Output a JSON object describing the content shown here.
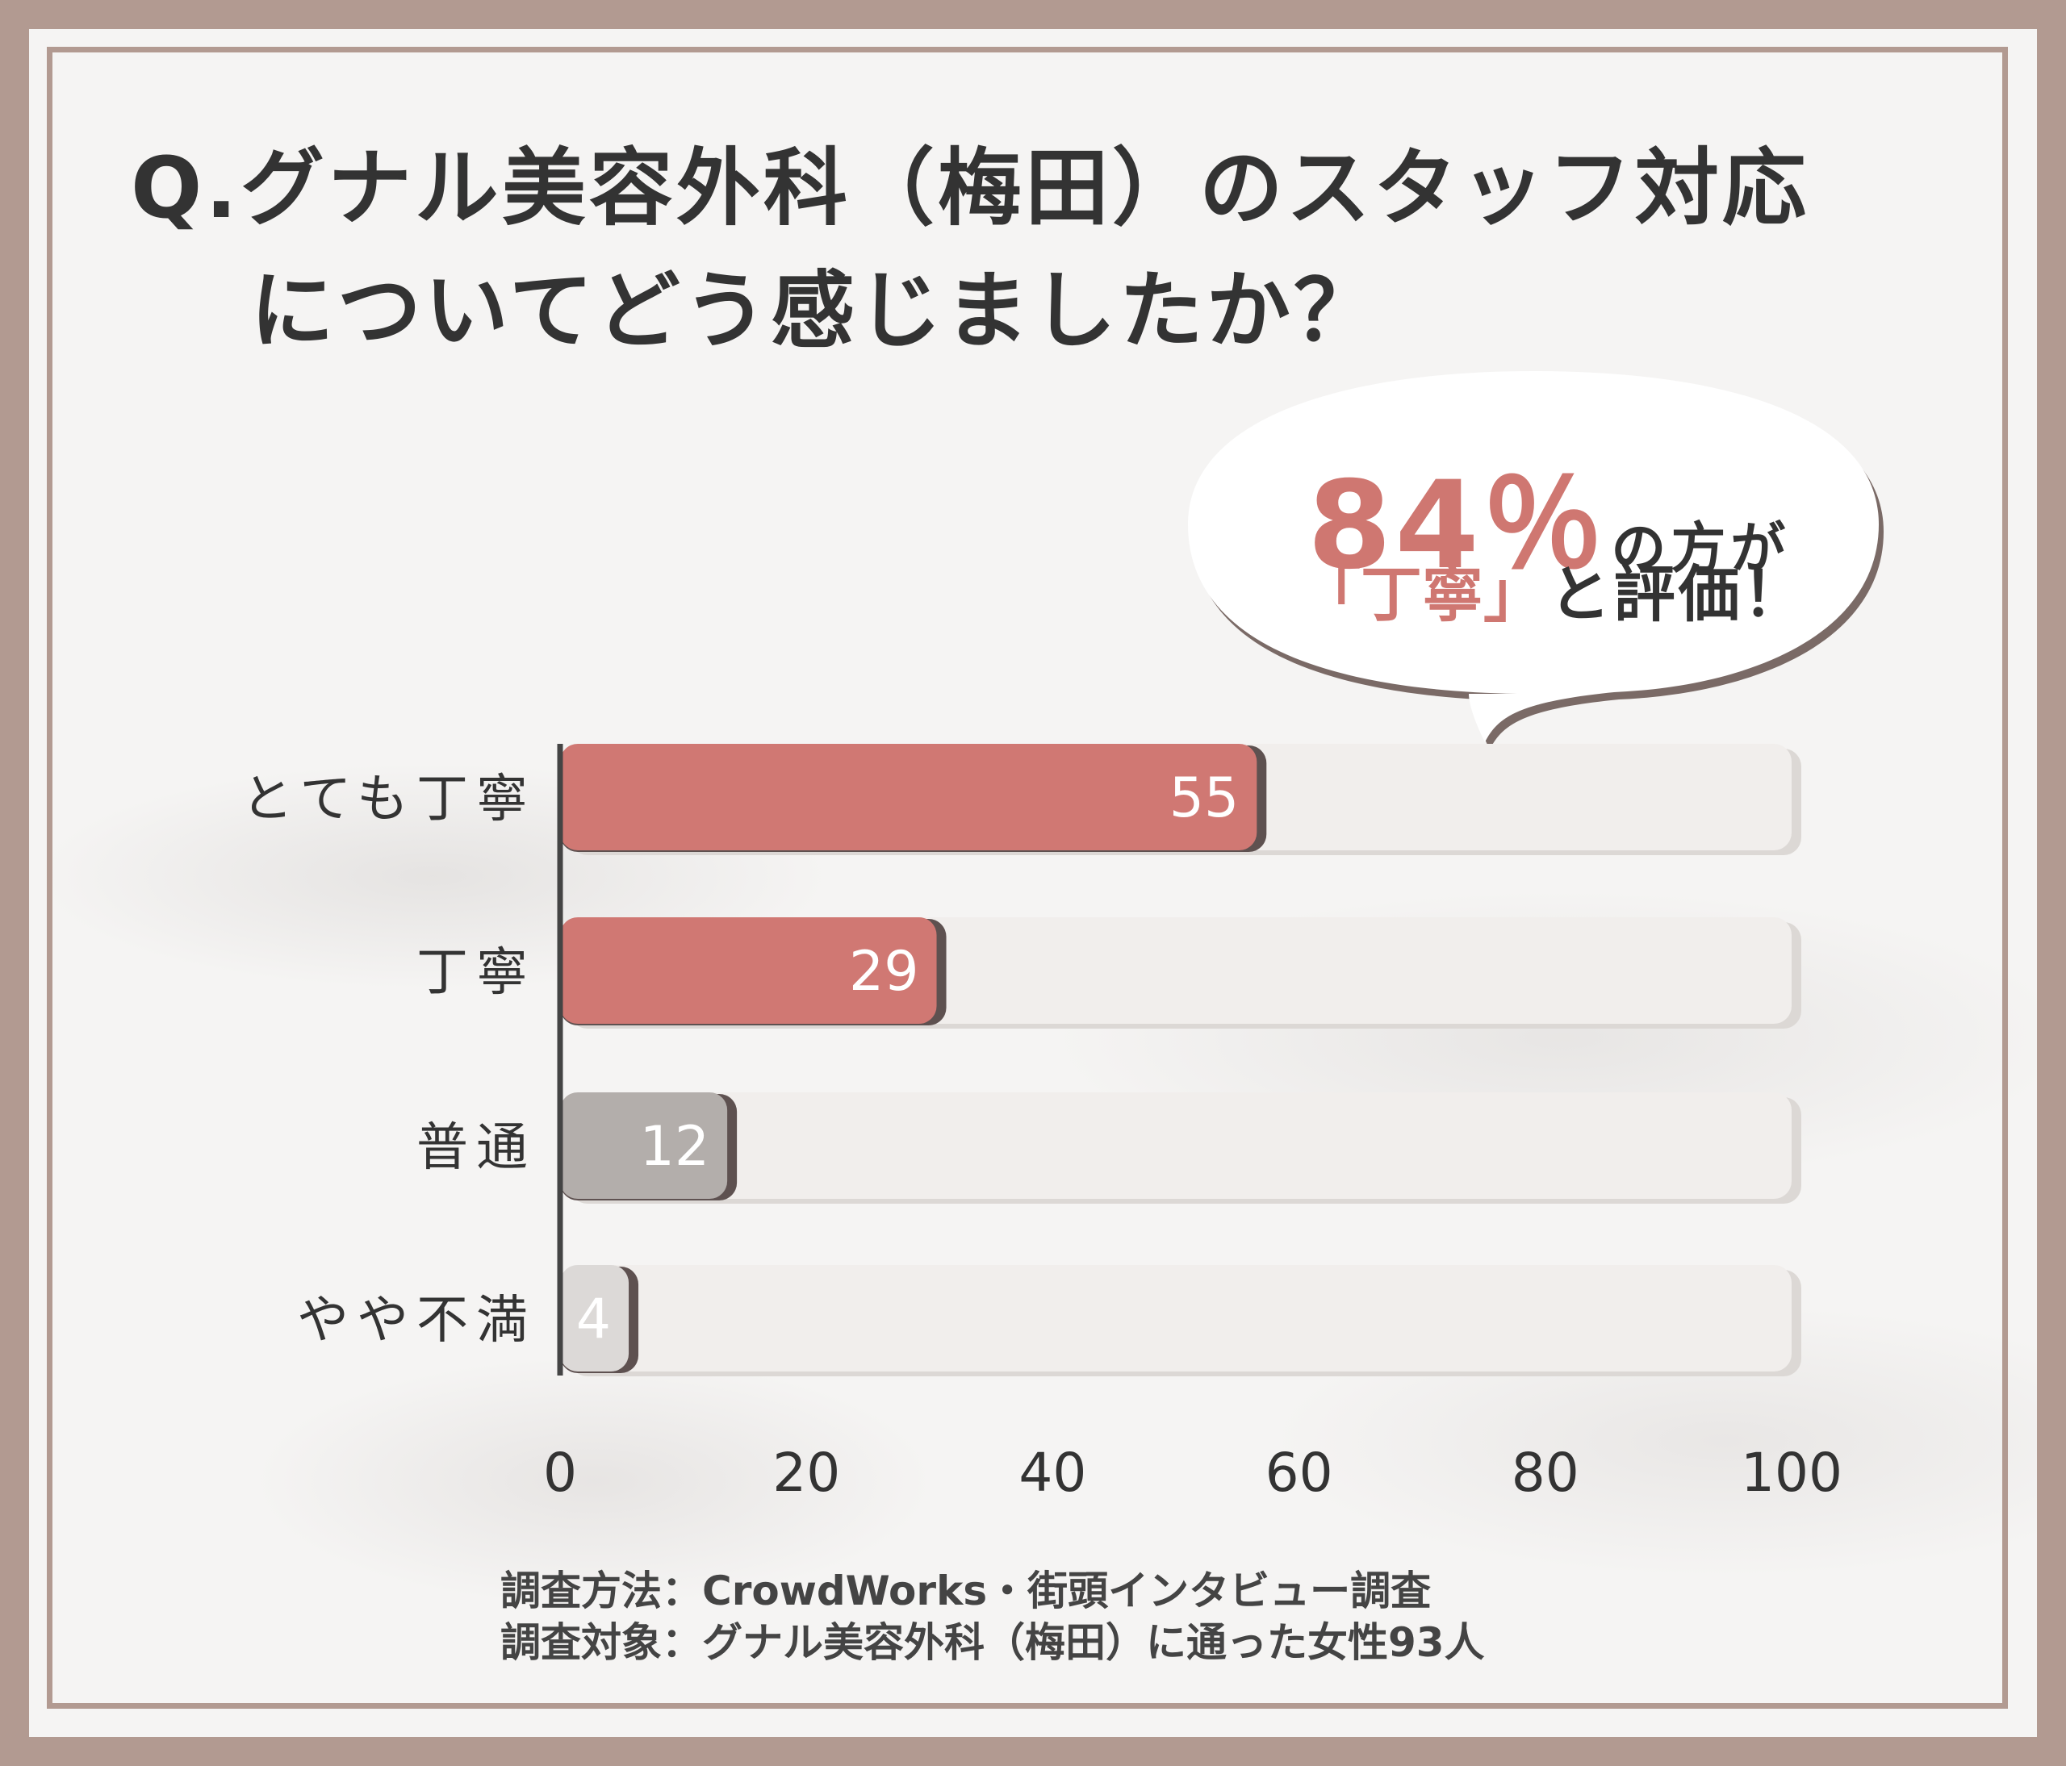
{
  "title": {
    "line1": "Q.グナル美容外科（梅田）のスタッフ対応",
    "line2": "についてどう感じましたか？"
  },
  "callout": {
    "percent": "84％",
    "suffix": "の方が",
    "quote": "「丁寧」",
    "ending": "と評価！"
  },
  "chart_data": {
    "type": "bar",
    "orientation": "horizontal",
    "categories": [
      "とても丁寧",
      "丁寧",
      "普通",
      "やや不満"
    ],
    "values": [
      55,
      29,
      12,
      4
    ],
    "xlim": [
      0,
      100
    ],
    "xticks": [
      "0",
      "20",
      "40",
      "60",
      "80",
      "100"
    ],
    "bar_colors": [
      "#d07873",
      "#d07873",
      "#b3aeab",
      "#dcd9d7"
    ],
    "track_color": "#f1eeec",
    "grid": false
  },
  "footer": {
    "method": "調査方法：CrowdWorks・街頭インタビュー調査",
    "target": "調査対象：グナル美容外科（梅田）に通った女性93人"
  }
}
